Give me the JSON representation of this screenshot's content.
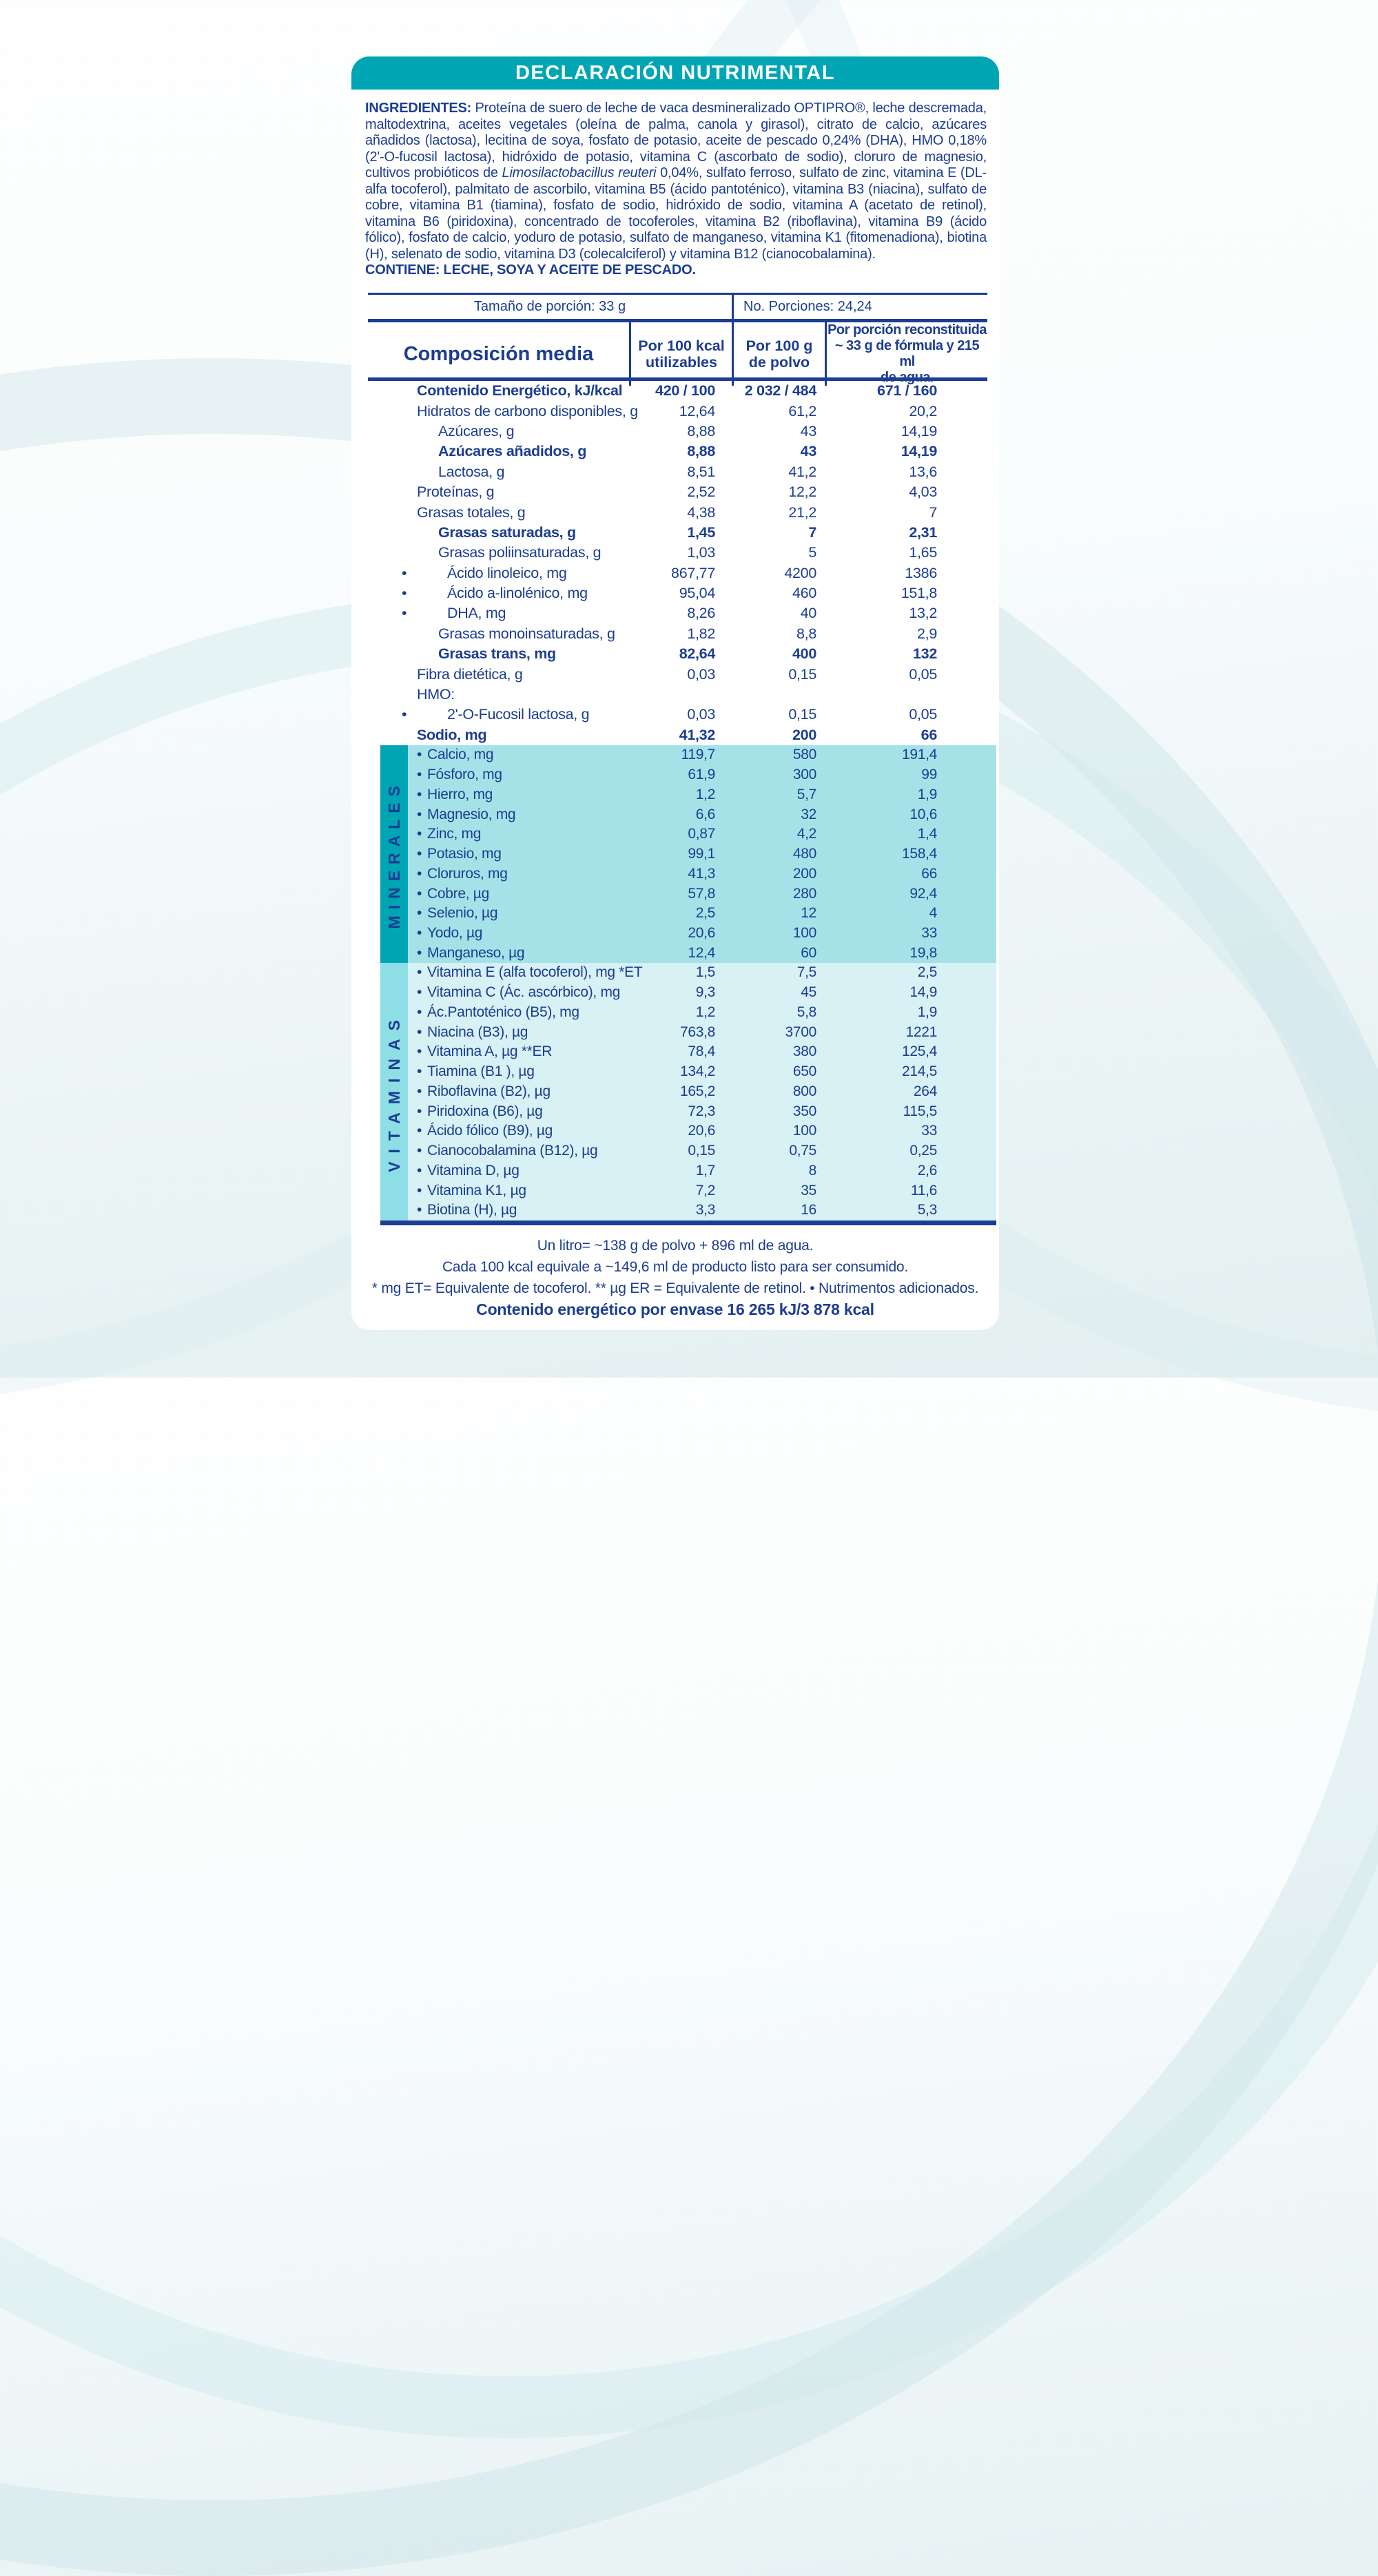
{
  "colors": {
    "teal": "#00a5b4",
    "ink": "#1c3d92",
    "mineralsBg": "#a4e2e8",
    "stripDark": "#00a5b4",
    "vitaminsBg": "#d7f1f4",
    "stripLight": "#8edfe5",
    "pageTint": "#e3eff0"
  },
  "banner": {
    "title": "DECLARACIÓN NUTRIMENTAL"
  },
  "ingredients": {
    "label": "INGREDIENTES:",
    "before_italic": "Proteína de suero de leche de vaca desmineralizado OPTIPRO®, leche descremada, maltodextrina, aceites vegetales (oleína de palma, canola y girasol), citrato de calcio, azúcares añadidos (lactosa), lecitina de soya, fosfato de potasio, aceite de pescado 0,24% (DHA), HMO 0,18% (2'-O-fucosil lactosa), hidróxido de potasio, vitamina C (ascorbato de sodio), cloruro de magnesio, cultivos probióticos de",
    "italic": "Limosilactobacillus reuteri",
    "after_italic": "0,04%, sulfato ferroso, sulfato de zinc, vitamina E (DL-alfa tocoferol), palmitato de ascorbilo, vitamina B5 (ácido pantoténico), vitamina B3 (niacina), sulfato de cobre, vitamina B1 (tiamina), fosfato de sodio, hidróxido de sodio, vitamina A (acetato de retinol), vitamina B6 (piridoxina), concentrado de tocoferoles, vitamina B2 (riboflavina), vitamina B9 (ácido fólico), fosfato de calcio, yoduro de potasio, sulfato de manganeso, vitamina K1 (fitomenadiona), biotina (H), selenato de sodio, vitamina D3 (colecalciferol) y vitamina B12 (cianocobalamina).",
    "contains": "CONTIENE: LECHE, SOYA Y ACEITE DE PESCADO."
  },
  "serving": {
    "size": "Tamaño de porción: 33 g",
    "portions": "No. Porciones: 24,24"
  },
  "table": {
    "header": {
      "col1": "Composición media",
      "col2a": "Por 100 kcal",
      "col2b": "utilizables",
      "col3a": "Por 100 g",
      "col3b": "de polvo",
      "col4a": "Por porción reconstituida",
      "col4b": "~ 33 g de fórmula y 215 ml",
      "col4c": "de agua."
    },
    "rows": [
      {
        "label": "Contenido Energético, kJ/kcal",
        "indent": 0,
        "bold": true,
        "v1": "420 / 100",
        "v2": "2 032 / 484",
        "v3": "671 / 160"
      },
      {
        "label": "Hidratos de carbono disponibles, g",
        "indent": 0,
        "v1": "12,64",
        "v2": "61,2",
        "v3": "20,2"
      },
      {
        "label": "Azúcares, g",
        "indent": 1,
        "v1": "8,88",
        "v2": "43",
        "v3": "14,19"
      },
      {
        "label": "Azúcares añadidos, g",
        "indent": 1,
        "bold": true,
        "v1": "8,88",
        "v2": "43",
        "v3": "14,19"
      },
      {
        "label": "Lactosa, g",
        "indent": 1,
        "v1": "8,51",
        "v2": "41,2",
        "v3": "13,6"
      },
      {
        "label": "Proteínas, g",
        "indent": 0,
        "v1": "2,52",
        "v2": "12,2",
        "v3": "4,03"
      },
      {
        "label": "Grasas totales, g",
        "indent": 0,
        "v1": "4,38",
        "v2": "21,2",
        "v3": "7"
      },
      {
        "label": "Grasas saturadas, g",
        "indent": 1,
        "bold": true,
        "v1": "1,45",
        "v2": "7",
        "v3": "2,31"
      },
      {
        "label": "Grasas poliinsaturadas, g",
        "indent": 1,
        "v1": "1,03",
        "v2": "5",
        "v3": "1,65"
      },
      {
        "label": "Ácido linoleico, mg",
        "bullet": true,
        "v1": "867,77",
        "v2": "4200",
        "v3": "1386"
      },
      {
        "label": "Ácido a-linolénico, mg",
        "bullet": true,
        "v1": "95,04",
        "v2": "460",
        "v3": "151,8"
      },
      {
        "label": "DHA, mg",
        "bullet": true,
        "v1": "8,26",
        "v2": "40",
        "v3": "13,2"
      },
      {
        "label": "Grasas monoinsaturadas, g",
        "indent": 1,
        "v1": "1,82",
        "v2": "8,8",
        "v3": "2,9"
      },
      {
        "label": "Grasas trans, mg",
        "indent": 1,
        "bold": true,
        "v1": "82,64",
        "v2": "400",
        "v3": "132"
      },
      {
        "label": "Fibra dietética, g",
        "indent": 0,
        "v1": "0,03",
        "v2": "0,15",
        "v3": "0,05"
      },
      {
        "label": "HMO:",
        "indent": 0,
        "v1": "",
        "v2": "",
        "v3": ""
      },
      {
        "label": "2'-O-Fucosil lactosa, g",
        "bullet": true,
        "v1": "0,03",
        "v2": "0,15",
        "v3": "0,05"
      },
      {
        "label": "Sodio, mg",
        "indent": 0,
        "bold": true,
        "v1": "41,32",
        "v2": "200",
        "v3": "66"
      }
    ]
  },
  "minerals": {
    "title": "MINERALES",
    "rows": [
      {
        "label": "Calcio, mg",
        "v1": "119,7",
        "v2": "580",
        "v3": "191,4"
      },
      {
        "label": "Fósforo, mg",
        "v1": "61,9",
        "v2": "300",
        "v3": "99"
      },
      {
        "label": "Hierro, mg",
        "v1": "1,2",
        "v2": "5,7",
        "v3": "1,9"
      },
      {
        "label": "Magnesio, mg",
        "v1": "6,6",
        "v2": "32",
        "v3": "10,6"
      },
      {
        "label": "Zinc, mg",
        "v1": "0,87",
        "v2": "4,2",
        "v3": "1,4"
      },
      {
        "label": "Potasio, mg",
        "v1": "99,1",
        "v2": "480",
        "v3": "158,4"
      },
      {
        "label": "Cloruros, mg",
        "v1": "41,3",
        "v2": "200",
        "v3": "66"
      },
      {
        "label": "Cobre, µg",
        "v1": "57,8",
        "v2": "280",
        "v3": "92,4"
      },
      {
        "label": "Selenio, µg",
        "v1": "2,5",
        "v2": "12",
        "v3": "4"
      },
      {
        "label": "Yodo, µg",
        "v1": "20,6",
        "v2": "100",
        "v3": "33"
      },
      {
        "label": "Manganeso, µg",
        "v1": "12,4",
        "v2": "60",
        "v3": "19,8"
      }
    ]
  },
  "vitamins": {
    "title": "VITAMINAS",
    "rows": [
      {
        "label": "Vitamina E (alfa tocoferol), mg *ET",
        "v1": "1,5",
        "v2": "7,5",
        "v3": "2,5"
      },
      {
        "label": "Vitamina C (Ác. ascórbico), mg",
        "v1": "9,3",
        "v2": "45",
        "v3": "14,9"
      },
      {
        "label": "Ác.Pantoténico (B5), mg",
        "v1": "1,2",
        "v2": "5,8",
        "v3": "1,9"
      },
      {
        "label": "Niacina (B3), µg",
        "v1": "763,8",
        "v2": "3700",
        "v3": "1221"
      },
      {
        "label": "Vitamina A, µg **ER",
        "v1": "78,4",
        "v2": "380",
        "v3": "125,4"
      },
      {
        "label": "Tiamina (B1 ), µg",
        "v1": "134,2",
        "v2": "650",
        "v3": "214,5"
      },
      {
        "label": "Riboflavina (B2), µg",
        "v1": "165,2",
        "v2": "800",
        "v3": "264"
      },
      {
        "label": "Piridoxina (B6), µg",
        "v1": "72,3",
        "v2": "350",
        "v3": "115,5"
      },
      {
        "label": "Ácido fólico (B9), µg",
        "v1": "20,6",
        "v2": "100",
        "v3": "33"
      },
      {
        "label": "Cianocobalamina (B12), µg",
        "v1": "0,15",
        "v2": "0,75",
        "v3": "0,25"
      },
      {
        "label": "Vitamina D, µg",
        "v1": "1,7",
        "v2": "8",
        "v3": "2,6"
      },
      {
        "label": "Vitamina K1, µg",
        "v1": "7,2",
        "v2": "35",
        "v3": "11,6"
      },
      {
        "label": "Biotina (H), µg",
        "v1": "3,3",
        "v2": "16",
        "v3": "5,3"
      }
    ]
  },
  "footer": {
    "line1": "Un litro= ~138 g de polvo + 896 ml de agua.",
    "line2": "Cada 100 kcal equivale a ~149,6 ml de producto listo para ser consumido.",
    "line3": "* mg ET= Equivalente de tocoferol. ** µg ER = Equivalente de retinol. • Nutrimentos adicionados.",
    "energy": "Contenido energético por envase 16 265 kJ/3 878 kcal"
  }
}
